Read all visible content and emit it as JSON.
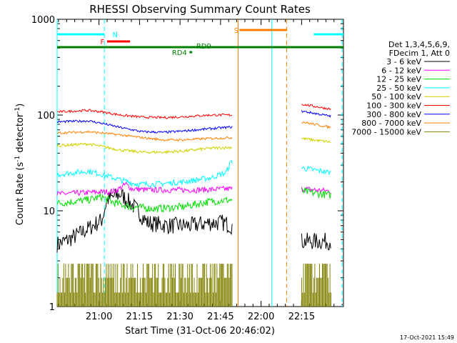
{
  "chart_data": {
    "type": "line",
    "title": "RHESSI Observing Summary Count Rates",
    "xlabel": "Start Time (31-Oct-06 20:46:02)",
    "ylabel_main": "Count Rate (s",
    "ylabel_sup1": "-1",
    "ylabel_mid": " detector",
    "ylabel_sup2": "-1",
    "ylabel_end": ")",
    "yscale": "log",
    "ylim": [
      1,
      1000
    ],
    "xlim_min": [
      -1.5,
      104.5
    ],
    "x_units": "minutes after 20:46:02",
    "y_ticks": [
      {
        "v": 1,
        "label": "1"
      },
      {
        "v": 10,
        "label": "10"
      },
      {
        "v": 100,
        "label": "100"
      },
      {
        "v": 1000,
        "label": "1000"
      }
    ],
    "x_ticks": [
      {
        "v": 14,
        "label": "21:00"
      },
      {
        "v": 29,
        "label": "21:15"
      },
      {
        "v": 44,
        "label": "21:30"
      },
      {
        "v": 59,
        "label": "21:45"
      },
      {
        "v": 74,
        "label": "22:00"
      },
      {
        "v": 89,
        "label": "22:15"
      }
    ],
    "legend_header": [
      "Det 1,3,4,5,6,9,",
      "FDecim 1, Att 0"
    ],
    "segments": [
      [
        -1.5,
        63.5
      ],
      [
        89,
        100
      ]
    ],
    "series": [
      {
        "name": "3 - 6 keV",
        "color": "#000000",
        "points": [
          [
            -1,
            4.5
          ],
          [
            4,
            5.2
          ],
          [
            10,
            6.5
          ],
          [
            15,
            8
          ],
          [
            17,
            13
          ],
          [
            22,
            15
          ],
          [
            27,
            11
          ],
          [
            32,
            7.5
          ],
          [
            40,
            7
          ],
          [
            48,
            7
          ],
          [
            55,
            7.5
          ],
          [
            60,
            7.5
          ],
          [
            63,
            7
          ],
          [
            89,
            4.8
          ],
          [
            100,
            4.8
          ]
        ],
        "noise": 0.09
      },
      {
        "name": "6 - 12 keV",
        "color": "#ff00ff",
        "points": [
          [
            -1,
            15
          ],
          [
            10,
            15.5
          ],
          [
            20,
            16
          ],
          [
            24,
            19
          ],
          [
            26,
            17
          ],
          [
            32,
            16.5
          ],
          [
            40,
            16.5
          ],
          [
            50,
            16.5
          ],
          [
            63,
            17
          ],
          [
            89,
            17
          ],
          [
            100,
            16
          ]
        ],
        "noise": 0.03
      },
      {
        "name": "12 - 25 keV",
        "color": "#00e000",
        "points": [
          [
            -1,
            12
          ],
          [
            10,
            13
          ],
          [
            15,
            14
          ],
          [
            20,
            12
          ],
          [
            26,
            11
          ],
          [
            35,
            10.5
          ],
          [
            45,
            11
          ],
          [
            55,
            12.5
          ],
          [
            63,
            13
          ],
          [
            89,
            16
          ],
          [
            100,
            14.5
          ]
        ],
        "noise": 0.04
      },
      {
        "name": "25 - 50 keV",
        "color": "#00ffff",
        "points": [
          [
            -1,
            24
          ],
          [
            10,
            26
          ],
          [
            15,
            24
          ],
          [
            22,
            21
          ],
          [
            28,
            19
          ],
          [
            35,
            19
          ],
          [
            45,
            20
          ],
          [
            55,
            22
          ],
          [
            61,
            25
          ],
          [
            63,
            33
          ],
          [
            89,
            28
          ],
          [
            100,
            25
          ]
        ],
        "noise": 0.03
      },
      {
        "name": "50 - 100 keV",
        "color": "#d0d000",
        "points": [
          [
            -1,
            48
          ],
          [
            10,
            50
          ],
          [
            15,
            47
          ],
          [
            22,
            43
          ],
          [
            30,
            41
          ],
          [
            38,
            41
          ],
          [
            45,
            42
          ],
          [
            55,
            45
          ],
          [
            63,
            46
          ],
          [
            89,
            57
          ],
          [
            100,
            52
          ]
        ],
        "noise": 0.015
      },
      {
        "name": "100 - 300 keV",
        "color": "#ff0000",
        "points": [
          [
            -1,
            108
          ],
          [
            10,
            112
          ],
          [
            15,
            108
          ],
          [
            22,
            100
          ],
          [
            30,
            95
          ],
          [
            38,
            94
          ],
          [
            45,
            96
          ],
          [
            55,
            100
          ],
          [
            63,
            100
          ],
          [
            89,
            130
          ],
          [
            100,
            115
          ]
        ],
        "noise": 0.012
      },
      {
        "name": "300 - 800 keV",
        "color": "#0000ff",
        "points": [
          [
            -1,
            85
          ],
          [
            10,
            87
          ],
          [
            15,
            82
          ],
          [
            22,
            74
          ],
          [
            30,
            67
          ],
          [
            38,
            66
          ],
          [
            45,
            68
          ],
          [
            55,
            72
          ],
          [
            63,
            75
          ],
          [
            89,
            110
          ],
          [
            100,
            97
          ]
        ],
        "noise": 0.012
      },
      {
        "name": "800 - 7000 keV",
        "color": "#ff8000",
        "points": [
          [
            -1,
            65
          ],
          [
            10,
            67
          ],
          [
            15,
            65
          ],
          [
            22,
            62
          ],
          [
            30,
            58
          ],
          [
            38,
            55
          ],
          [
            45,
            55
          ],
          [
            55,
            57
          ],
          [
            63,
            58
          ],
          [
            89,
            85
          ],
          [
            100,
            74
          ]
        ],
        "noise": 0.012
      },
      {
        "name": "7000 - 15000 keV",
        "color": "#808000",
        "points": [
          [
            -1,
            2
          ],
          [
            100,
            2
          ]
        ],
        "noise": 0.0
      }
    ],
    "flag_bars": [
      {
        "label": "N",
        "color": "#00ffff",
        "x1": -1.5,
        "x2": 16,
        "y": 1,
        "label_x": 19
      },
      {
        "label": "",
        "color": "#00ffff",
        "x1": 93.5,
        "x2": 104.5,
        "y": 1,
        "label_x": 0
      },
      {
        "label": "F",
        "color": "#ff0000",
        "x1": 17,
        "x2": 25.5,
        "y": 2,
        "label_x": 14.5
      },
      {
        "label": "S",
        "color": "#ff8000",
        "x1": 66,
        "x2": 83.5,
        "y": 0,
        "label_x": 64
      },
      {
        "label": "RD9",
        "color": "#008000",
        "x1": -1.5,
        "x2": 104.5,
        "y": 3,
        "label_x": 50
      },
      {
        "label": "RD4",
        "color": "#008000",
        "x1": 47.5,
        "x2": 48.5,
        "y": 4,
        "label_x": 41
      }
    ],
    "vlines": [
      {
        "x": -1.5,
        "color": "#00ffff",
        "dash": false
      },
      {
        "x": 16,
        "color": "#00ffff",
        "dash": true
      },
      {
        "x": 65.5,
        "color": "#ff8000",
        "dash": false
      },
      {
        "x": 78,
        "color": "#00ffff",
        "dash": false
      },
      {
        "x": 83.5,
        "color": "#ff8000",
        "dash": true
      },
      {
        "x": 104,
        "color": "#00ffff",
        "dash": true
      }
    ],
    "grid": false,
    "legend_placement": "right"
  },
  "footer": {
    "timestamp": "17-Oct-2021 15:49"
  }
}
